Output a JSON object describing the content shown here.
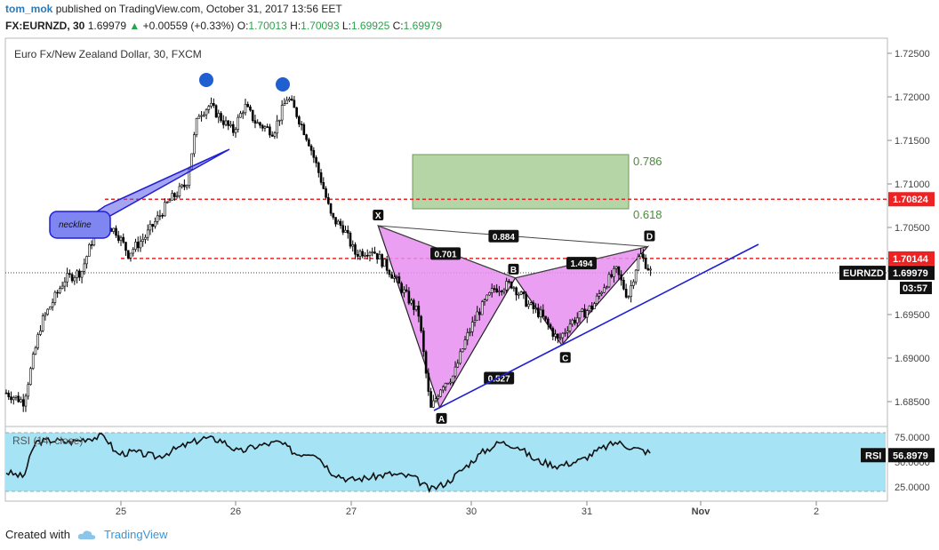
{
  "header": {
    "user": "tom_mok",
    "published_text": "published on TradingView.com, October 31, 2017 13:56 EET",
    "symbol": "FX:EURNZD, 30",
    "last": "1.69979",
    "change": "+0.00559 (+0.33%)",
    "o_label": "O:",
    "o_value": "1.70013",
    "h_label": "H:",
    "h_value": "1.70093",
    "l_label": "L:",
    "l_value": "1.69925",
    "c_label": "C:",
    "c_value": "1.69979"
  },
  "footer": {
    "created_with": "Created with",
    "brand": "TradingView"
  },
  "colors": {
    "candle": "#000000",
    "pattern_fill": "#e88ef0",
    "trendline": "#1f1fd4",
    "level_line": "#ee2222",
    "target_box": "#8fbf78",
    "rsi_band": "#a6e4f5",
    "marker": "#1f5fd0",
    "neckline_box": "#7f86f2"
  },
  "chart_data": {
    "type": "candlestick",
    "title": "Euro Fx/New Zealand Dollar, 30, FXCM",
    "x_ticks": [
      "25",
      "26",
      "27",
      "30",
      "31",
      "Nov",
      "2"
    ],
    "y_ticks": [
      "1.72500",
      "1.72000",
      "1.71500",
      "1.71000",
      "1.70500",
      "1.70000",
      "1.69500",
      "1.69000",
      "1.68500"
    ],
    "ylim": [
      1.6825,
      1.7275
    ],
    "price_path": [
      [
        0,
        1.686
      ],
      [
        0.15,
        1.685
      ],
      [
        0.3,
        1.694
      ],
      [
        0.5,
        1.699
      ],
      [
        0.65,
        1.7
      ],
      [
        0.8,
        1.706
      ],
      [
        0.95,
        1.7045
      ],
      [
        1.05,
        1.702
      ],
      [
        1.2,
        1.704
      ],
      [
        1.4,
        1.708
      ],
      [
        1.55,
        1.71
      ],
      [
        1.65,
        1.718
      ],
      [
        1.75,
        1.719
      ],
      [
        1.85,
        1.7175
      ],
      [
        1.95,
        1.716
      ],
      [
        2.05,
        1.719
      ],
      [
        2.15,
        1.717
      ],
      [
        2.3,
        1.716
      ],
      [
        2.42,
        1.72
      ],
      [
        2.5,
        1.718
      ],
      [
        2.6,
        1.715
      ],
      [
        2.72,
        1.71
      ],
      [
        2.8,
        1.706
      ],
      [
        2.9,
        1.705
      ],
      [
        3.0,
        1.702
      ],
      [
        3.15,
        1.7025
      ],
      [
        3.3,
        1.7
      ],
      [
        3.45,
        1.697
      ],
      [
        3.55,
        1.695
      ],
      [
        3.65,
        1.684
      ],
      [
        3.75,
        1.687
      ],
      [
        3.85,
        1.688
      ],
      [
        3.95,
        1.692
      ],
      [
        4.05,
        1.695
      ],
      [
        4.2,
        1.698
      ],
      [
        4.35,
        1.6985
      ],
      [
        4.5,
        1.696
      ],
      [
        4.6,
        1.695
      ],
      [
        4.75,
        1.692
      ],
      [
        4.85,
        1.694
      ],
      [
        4.95,
        1.695
      ],
      [
        5.05,
        1.696
      ],
      [
        5.15,
        1.6985
      ],
      [
        5.25,
        1.7
      ],
      [
        5.35,
        1.697
      ],
      [
        5.45,
        1.702
      ],
      [
        5.55,
        1.6998
      ]
    ],
    "levels": [
      {
        "name": "1.70824",
        "value": 1.70824
      },
      {
        "name": "1.70144",
        "value": 1.70144
      }
    ],
    "current": {
      "name": "EURNZD",
      "value": "1.69979",
      "timer": "03:57",
      "price": 1.69979
    },
    "harmonic_points": [
      {
        "name": "X",
        "x": 3.2,
        "y": 1.7052
      },
      {
        "name": "A",
        "x": 3.73,
        "y": 1.6843
      },
      {
        "name": "B",
        "x": 4.38,
        "y": 1.6992
      },
      {
        "name": "C",
        "x": 4.78,
        "y": 1.6915
      },
      {
        "name": "D",
        "x": 5.52,
        "y": 1.7028
      }
    ],
    "ratios": [
      {
        "name": "0.701",
        "x": 3.78,
        "y": 1.702
      },
      {
        "name": "0.884",
        "x": 4.28,
        "y": 1.704
      },
      {
        "name": "1.494",
        "x": 4.95,
        "y": 1.7009
      },
      {
        "name": "0.527",
        "x": 4.24,
        "y": 1.6877
      }
    ],
    "fib_targets": [
      {
        "name": "0.786",
        "value": 1.7133
      },
      {
        "name": "0.618",
        "value": 1.7075
      }
    ],
    "neckline_label": "neckline",
    "rsi": {
      "label": "RSI (14, close)",
      "value_tag": "RSI",
      "value": "56.8979",
      "y_ticks": [
        "75.0000",
        "50.0000",
        "25.0000"
      ],
      "ylim": [
        15,
        85
      ],
      "path": [
        [
          0,
          40
        ],
        [
          0.15,
          35
        ],
        [
          0.25,
          70
        ],
        [
          0.4,
          72
        ],
        [
          0.55,
          70
        ],
        [
          0.7,
          74
        ],
        [
          0.85,
          76
        ],
        [
          0.95,
          58
        ],
        [
          1.1,
          60
        ],
        [
          1.3,
          55
        ],
        [
          1.5,
          65
        ],
        [
          1.7,
          74
        ],
        [
          1.85,
          72
        ],
        [
          2.0,
          60
        ],
        [
          2.15,
          66
        ],
        [
          2.35,
          70
        ],
        [
          2.5,
          58
        ],
        [
          2.65,
          60
        ],
        [
          2.8,
          40
        ],
        [
          2.95,
          32
        ],
        [
          3.1,
          34
        ],
        [
          3.3,
          38
        ],
        [
          3.5,
          35
        ],
        [
          3.65,
          22
        ],
        [
          3.8,
          30
        ],
        [
          3.95,
          45
        ],
        [
          4.1,
          60
        ],
        [
          4.25,
          70
        ],
        [
          4.4,
          66
        ],
        [
          4.55,
          52
        ],
        [
          4.75,
          46
        ],
        [
          4.95,
          52
        ],
        [
          5.1,
          62
        ],
        [
          5.25,
          70
        ],
        [
          5.4,
          64
        ],
        [
          5.55,
          59
        ]
      ]
    }
  }
}
